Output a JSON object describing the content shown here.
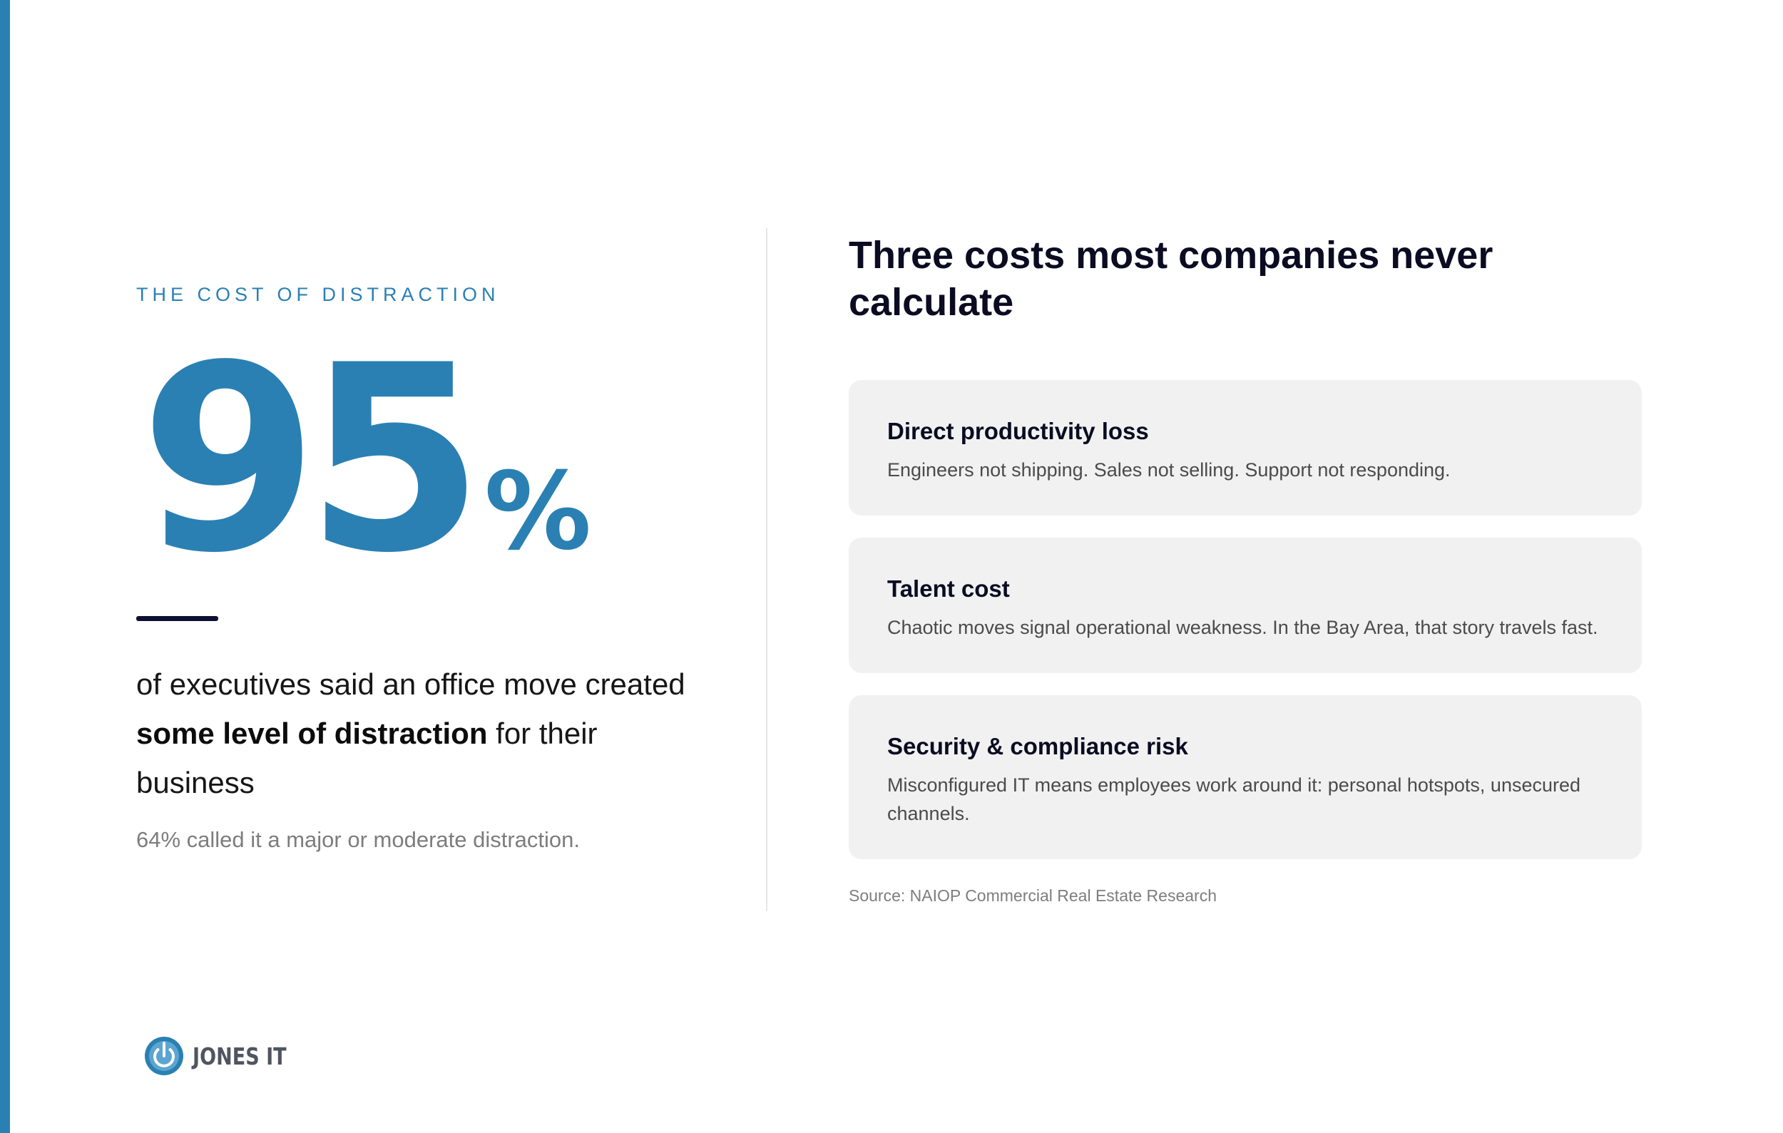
{
  "colors": {
    "accent": "#2a80b3",
    "heading": "#0b0b22",
    "card_bg": "#f1f1f1",
    "muted_text": "#7d7d7d"
  },
  "left": {
    "eyebrow": "THE COST OF DISTRACTION",
    "stat_number": "95",
    "stat_unit": "%",
    "statement_pre": "of executives said an office move created ",
    "statement_bold": "some level of distraction",
    "statement_post": " for their business",
    "sub_stat": "64% called it a major or moderate distraction."
  },
  "right": {
    "title": "Three costs most companies never calculate",
    "cards": [
      {
        "title": "Direct productivity loss",
        "body": "Engineers not shipping. Sales not selling. Support not responding."
      },
      {
        "title": "Talent cost",
        "body": "Chaotic moves signal operational weakness. In the Bay Area, that story travels fast."
      },
      {
        "title": "Security & compliance risk",
        "body": "Misconfigured IT means employees work around it: personal hotspots, unsecured channels."
      }
    ],
    "source": "Source: NAIOP Commercial Real Estate Research"
  },
  "footer": {
    "logo_icon": "power-button-icon",
    "logo_text": "JONES IT"
  }
}
